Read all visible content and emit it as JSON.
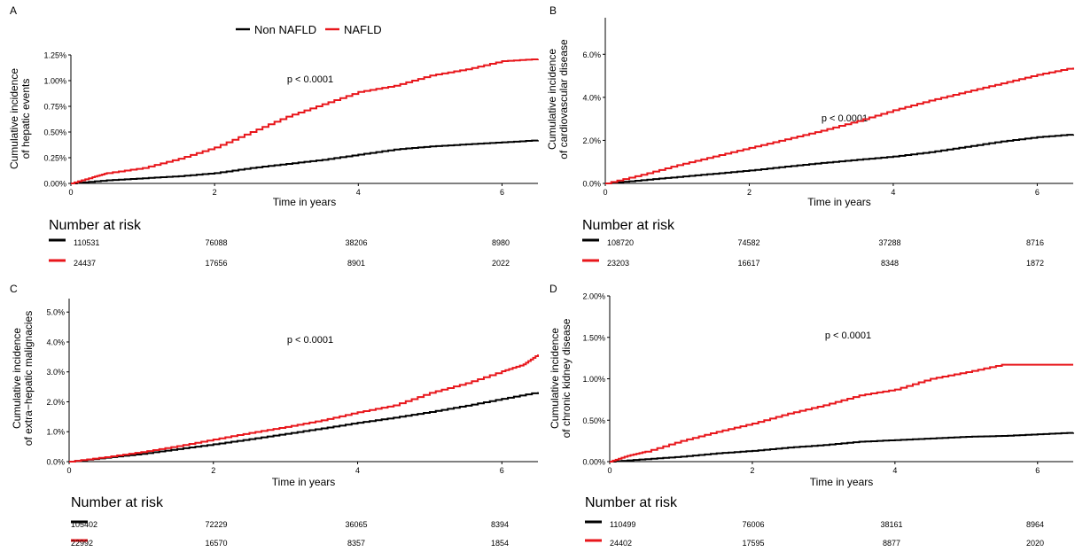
{
  "legend": {
    "items": [
      {
        "label": "Non NAFLD",
        "color": "#000000"
      },
      {
        "label": "NAFLD",
        "color": "#e8161b"
      }
    ]
  },
  "risk_table_title": "Number at risk",
  "chart_data": [
    {
      "panel": "A",
      "type": "line",
      "step": true,
      "ylabel": [
        "Cumulative incidence",
        "of hepatic events"
      ],
      "xlabel": "Time in years",
      "annotation": "p < 0.0001",
      "xlim": [
        0,
        6.5
      ],
      "ylim": [
        0,
        1.25
      ],
      "x_ticks": [
        0,
        2,
        4,
        6
      ],
      "y_ticks": [
        0,
        0.25,
        0.5,
        0.75,
        1.0,
        1.25
      ],
      "y_tick_labels": [
        "0.00%",
        "0.25%",
        "0.50%",
        "0.75%",
        "1.00%",
        "1.25%"
      ],
      "series": [
        {
          "name": "Non NAFLD",
          "color": "#000000",
          "x": [
            0,
            0.5,
            1,
            1.5,
            2,
            2.5,
            3,
            3.5,
            4,
            4.5,
            5,
            5.5,
            6,
            6.5
          ],
          "y": [
            0,
            0.03,
            0.05,
            0.07,
            0.1,
            0.15,
            0.19,
            0.23,
            0.28,
            0.33,
            0.36,
            0.38,
            0.4,
            0.42
          ]
        },
        {
          "name": "NAFLD",
          "color": "#e8161b",
          "x": [
            0,
            0.3,
            0.5,
            1,
            1.5,
            2,
            2.5,
            3,
            3.5,
            4,
            4.5,
            5,
            5.5,
            6,
            6.5
          ],
          "y": [
            0,
            0.06,
            0.1,
            0.15,
            0.24,
            0.35,
            0.5,
            0.65,
            0.77,
            0.89,
            0.95,
            1.05,
            1.11,
            1.19,
            1.21
          ]
        }
      ],
      "risk_table": {
        "times": [
          0,
          2,
          4,
          6
        ],
        "rows": [
          {
            "color": "#000000",
            "values": [
              "110531",
              "76088",
              "38206",
              "8980"
            ]
          },
          {
            "color": "#e8161b",
            "values": [
              "24437",
              "17656",
              "8901",
              "2022"
            ]
          }
        ]
      }
    },
    {
      "panel": "B",
      "type": "line",
      "step": true,
      "ylabel": [
        "Cumulative incidence",
        "of cardiovascular disease"
      ],
      "xlabel": "Time in years",
      "annotation": "p < 0.0001",
      "xlim": [
        0,
        6.5
      ],
      "ylim": [
        0,
        7.7
      ],
      "x_ticks": [
        0,
        2,
        4,
        6
      ],
      "y_ticks": [
        0,
        2,
        4,
        6
      ],
      "y_tick_labels": [
        "0.0%",
        "2.0%",
        "4.0%",
        "6.0%"
      ],
      "series": [
        {
          "name": "Non NAFLD",
          "color": "#000000",
          "x": [
            0,
            0.5,
            1,
            1.5,
            2,
            2.5,
            3,
            3.5,
            4,
            4.5,
            5,
            5.5,
            6,
            6.5
          ],
          "y": [
            0,
            0.15,
            0.3,
            0.45,
            0.6,
            0.78,
            0.95,
            1.1,
            1.25,
            1.45,
            1.7,
            1.95,
            2.15,
            2.28
          ]
        },
        {
          "name": "NAFLD",
          "color": "#e8161b",
          "x": [
            0,
            0.5,
            1,
            1.5,
            2,
            2.5,
            3,
            3.5,
            4,
            4.5,
            5,
            5.5,
            6,
            6.5
          ],
          "y": [
            0,
            0.4,
            0.85,
            1.25,
            1.65,
            2.05,
            2.45,
            2.9,
            3.4,
            3.85,
            4.25,
            4.65,
            5.05,
            5.38
          ]
        }
      ],
      "risk_table": {
        "times": [
          0,
          2,
          4,
          6
        ],
        "rows": [
          {
            "color": "#000000",
            "values": [
              "108720",
              "74582",
              "37288",
              "8716"
            ]
          },
          {
            "color": "#e8161b",
            "values": [
              "23203",
              "16617",
              "8348",
              "1872"
            ]
          }
        ]
      }
    },
    {
      "panel": "C",
      "type": "line",
      "step": true,
      "ylabel": [
        "Cumulative incidence",
        "of extra−hepatic malignacies"
      ],
      "xlabel": "Time in years",
      "annotation": "p < 0.0001",
      "xlim": [
        0,
        6.5
      ],
      "ylim": [
        0,
        5.45
      ],
      "x_ticks": [
        0,
        2,
        4,
        6
      ],
      "y_ticks": [
        0,
        1,
        2,
        3,
        4,
        5
      ],
      "y_tick_labels": [
        "0.0%",
        "1.0%",
        "2.0%",
        "3.0%",
        "4.0%",
        "5.0%"
      ],
      "series": [
        {
          "name": "Non NAFLD",
          "color": "#000000",
          "x": [
            0,
            0.5,
            1,
            1.5,
            2,
            2.5,
            3,
            3.5,
            4,
            4.5,
            5,
            5.5,
            6,
            6.5
          ],
          "y": [
            0,
            0.13,
            0.26,
            0.42,
            0.58,
            0.75,
            0.93,
            1.11,
            1.3,
            1.47,
            1.66,
            1.87,
            2.1,
            2.32
          ]
        },
        {
          "name": "NAFLD",
          "color": "#e8161b",
          "x": [
            0,
            0.5,
            1,
            1.5,
            2,
            2.5,
            3,
            3.5,
            4,
            4.5,
            5,
            5.5,
            6,
            6.3,
            6.5
          ],
          "y": [
            0,
            0.15,
            0.32,
            0.52,
            0.74,
            0.96,
            1.16,
            1.38,
            1.65,
            1.88,
            2.3,
            2.62,
            3.02,
            3.25,
            3.58
          ]
        }
      ],
      "risk_table": {
        "times": [
          0,
          2,
          4,
          6
        ],
        "rows": [
          {
            "color": "#000000",
            "values": [
              "105402",
              "72229",
              "36065",
              "8394"
            ]
          },
          {
            "color": "#e8161b",
            "values": [
              "22992",
              "16570",
              "8357",
              "1854"
            ]
          }
        ]
      }
    },
    {
      "panel": "D",
      "type": "line",
      "step": true,
      "ylabel": [
        "Cumulative incidence",
        "of chronic kidney disease"
      ],
      "xlabel": "Time in years",
      "annotation": "p < 0.0001",
      "xlim": [
        0,
        6.5
      ],
      "ylim": [
        0,
        2.0
      ],
      "x_ticks": [
        0,
        2,
        4,
        6
      ],
      "y_ticks": [
        0,
        0.5,
        1.0,
        1.5,
        2.0
      ],
      "y_tick_labels": [
        "0.00%",
        "0.50%",
        "1.00%",
        "1.50%",
        "2.00%"
      ],
      "series": [
        {
          "name": "Non NAFLD",
          "color": "#000000",
          "x": [
            0,
            0.5,
            1,
            1.5,
            2,
            2.5,
            3,
            3.5,
            4,
            4.5,
            5,
            5.5,
            6,
            6.5
          ],
          "y": [
            0,
            0.03,
            0.06,
            0.1,
            0.13,
            0.17,
            0.2,
            0.24,
            0.26,
            0.28,
            0.3,
            0.31,
            0.33,
            0.35
          ]
        },
        {
          "name": "NAFLD",
          "color": "#e8161b",
          "x": [
            0,
            0.25,
            0.5,
            1,
            1.5,
            2,
            2.5,
            3,
            3.5,
            4,
            4.5,
            5,
            5.5,
            6.5
          ],
          "y": [
            0,
            0.07,
            0.12,
            0.25,
            0.36,
            0.46,
            0.58,
            0.68,
            0.8,
            0.87,
            1.0,
            1.08,
            1.17,
            1.17
          ]
        }
      ],
      "risk_table": {
        "times": [
          0,
          2,
          4,
          6
        ],
        "rows": [
          {
            "color": "#000000",
            "values": [
              "110499",
              "76006",
              "38161",
              "8964"
            ]
          },
          {
            "color": "#e8161b",
            "values": [
              "24402",
              "17595",
              "8877",
              "2020"
            ]
          }
        ]
      }
    }
  ]
}
